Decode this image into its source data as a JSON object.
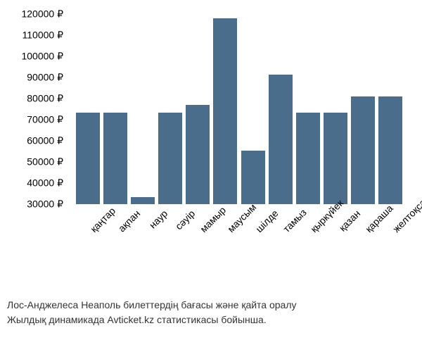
{
  "chart": {
    "type": "bar",
    "categories": [
      "қаңтар",
      "ақпан",
      "наур",
      "сәуір",
      "мамыр",
      "маусым",
      "шілде",
      "тамыз",
      "қыркүйек",
      "қазан",
      "қараша",
      "желтоқсан"
    ],
    "values": [
      73500,
      73500,
      33500,
      73500,
      77000,
      118000,
      55500,
      91500,
      73500,
      73500,
      81000,
      81000
    ],
    "bar_color": "#4a6d8c",
    "y_min": 30000,
    "y_max": 120000,
    "y_tick_step": 10000,
    "y_ticks": [
      30000,
      40000,
      50000,
      60000,
      70000,
      80000,
      90000,
      100000,
      110000,
      120000
    ],
    "y_tick_labels": [
      "30000 ₽",
      "40000 ₽",
      "50000 ₽",
      "60000 ₽",
      "70000 ₽",
      "80000 ₽",
      "90000 ₽",
      "100000 ₽",
      "110000 ₽",
      "120000 ₽"
    ],
    "currency_symbol": "₽",
    "background_color": "#ffffff",
    "tick_fontsize": 14,
    "x_label_rotation": -45,
    "bar_width_ratio": 0.85
  },
  "caption": {
    "line1": "Лос-Анджелеса Неаполь билеттердің бағасы және қайта оралу",
    "line2": "Жылдық динамикада Avticket.kz статистикасы бойынша."
  }
}
